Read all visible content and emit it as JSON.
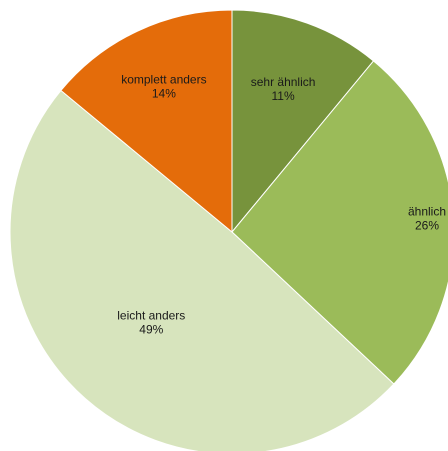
{
  "chart_data": {
    "type": "pie",
    "title": "",
    "start_angle_deg": 0,
    "direction": "clockwise",
    "slices": [
      {
        "label": "sehr ähnlich",
        "value": 11,
        "value_label": "11%",
        "color": "#77933c"
      },
      {
        "label": "ähnlich",
        "value": 26,
        "value_label": "26%",
        "color": "#9bbb59"
      },
      {
        "label": "leicht anders",
        "value": 49,
        "value_label": "49%",
        "color": "#d7e4bd"
      },
      {
        "label": "komplett anders",
        "value": 14,
        "value_label": "14%",
        "color": "#e46c0a"
      }
    ]
  }
}
